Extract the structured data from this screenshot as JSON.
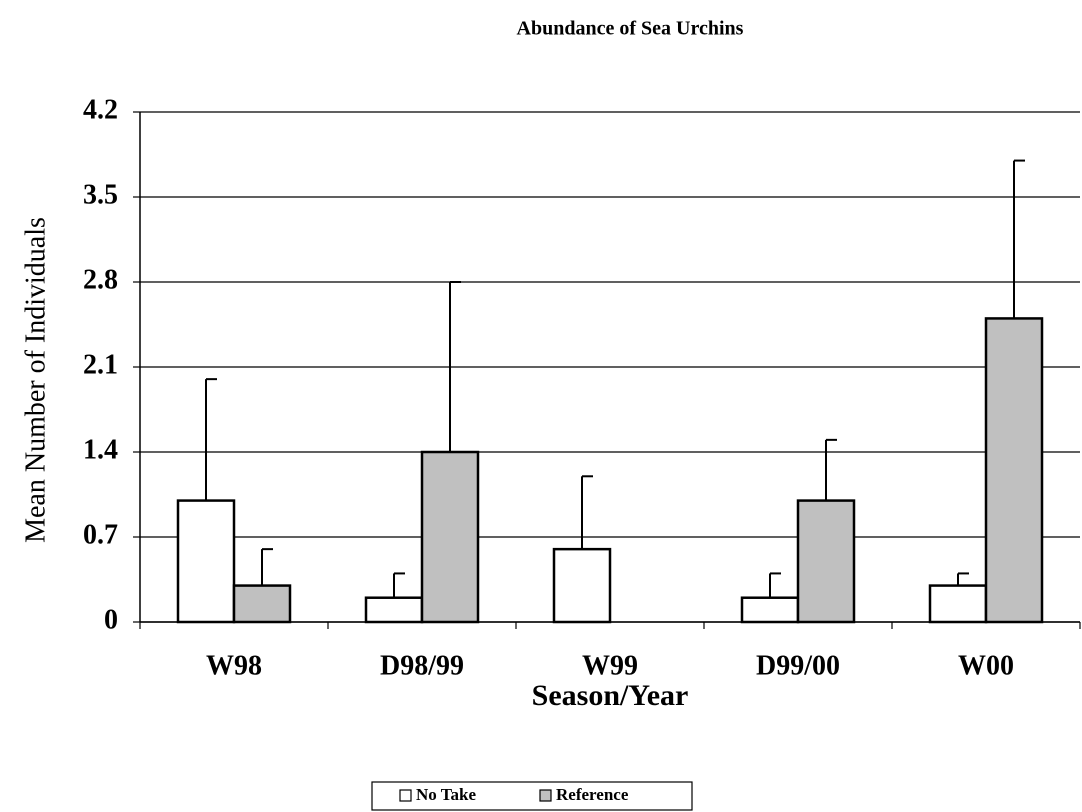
{
  "chart_data": {
    "type": "bar",
    "title": "Abundance of Sea Urchins",
    "x_label": "Season/Year",
    "y_label": "Mean Number of Individuals",
    "categories": [
      "W98",
      "D98/99",
      "W99",
      "D99/00",
      "W00"
    ],
    "series": [
      {
        "name": "No Take",
        "color": "#ffffff",
        "values": [
          1.0,
          0.2,
          0.6,
          0.2,
          0.3
        ],
        "errors": [
          1.0,
          0.2,
          0.6,
          0.2,
          0.1
        ]
      },
      {
        "name": "Reference",
        "color": "#c0c0c0",
        "values": [
          0.3,
          1.4,
          0,
          1.0,
          2.5
        ],
        "errors": [
          0.3,
          1.4,
          0,
          0.5,
          1.3
        ]
      }
    ],
    "ylim": [
      0,
      4.2
    ],
    "yticks": [
      0,
      0.7,
      1.4,
      2.1,
      2.8,
      3.5,
      4.2
    ],
    "grid": true,
    "legend": "bottom"
  }
}
